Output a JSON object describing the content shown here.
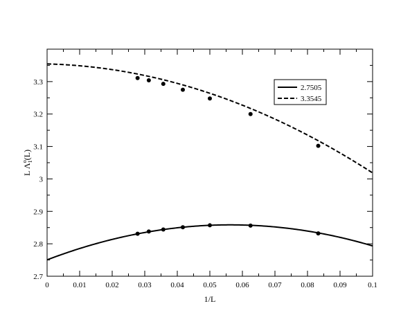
{
  "chart_data": {
    "type": "line",
    "xlabel": "1/L",
    "ylabel": {
      "prefix": "L Λ",
      "subscript": "1",
      "superscript": "o",
      "suffix": "(L)"
    },
    "xlim": [
      0,
      0.1
    ],
    "ylim": [
      2.7,
      3.4
    ],
    "xticks": [
      0,
      0.01,
      0.02,
      0.03,
      0.04,
      0.05,
      0.06,
      0.07,
      0.08,
      0.09,
      0.1
    ],
    "xtick_labels": [
      "0",
      "0.01",
      "0.02",
      "0.03",
      "0.04",
      "0.05",
      "0.06",
      "0.07",
      "0.08",
      "0.09",
      "0.1"
    ],
    "yticks": [
      2.7,
      2.8,
      2.9,
      3.0,
      3.1,
      3.2,
      3.3
    ],
    "ytick_labels": [
      "2.7",
      "2.8",
      "2.9",
      "3",
      "3.1",
      "3.2",
      "3.3"
    ],
    "grid": false,
    "legend_position": "top-right",
    "series": [
      {
        "name": "2.7505",
        "line_style": "solid",
        "fit_coefficients": [
          2.7505,
          3.83,
          -34.0
        ],
        "points": [
          {
            "x": 0.0278,
            "y": 2.831
          },
          {
            "x": 0.03125,
            "y": 2.838
          },
          {
            "x": 0.0357,
            "y": 2.844
          },
          {
            "x": 0.0417,
            "y": 2.851
          },
          {
            "x": 0.05,
            "y": 2.857
          },
          {
            "x": 0.0625,
            "y": 2.856
          },
          {
            "x": 0.0833,
            "y": 2.832
          }
        ]
      },
      {
        "name": "3.3545",
        "line_style": "dashed",
        "fit_coefficients": [
          3.3545,
          -0.26,
          -31.0
        ],
        "points": [
          {
            "x": 0.0278,
            "y": 3.311
          },
          {
            "x": 0.03125,
            "y": 3.304
          },
          {
            "x": 0.0357,
            "y": 3.293
          },
          {
            "x": 0.0417,
            "y": 3.275
          },
          {
            "x": 0.05,
            "y": 3.248
          },
          {
            "x": 0.0625,
            "y": 3.2
          },
          {
            "x": 0.0833,
            "y": 3.102
          }
        ]
      }
    ]
  }
}
